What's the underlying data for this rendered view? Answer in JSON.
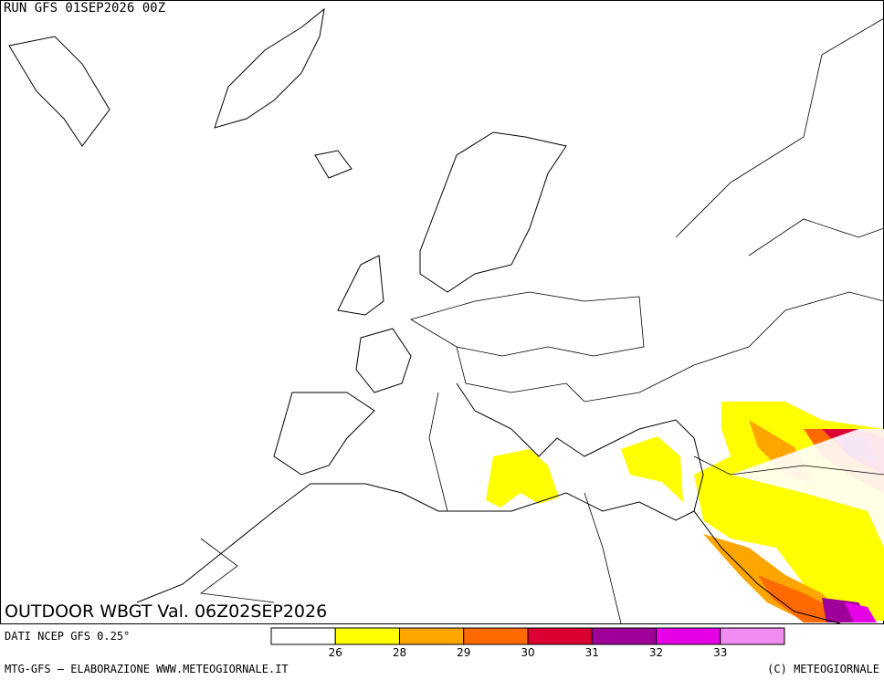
{
  "header": {
    "run": "RUN GFS 01SEP2026 00Z"
  },
  "map": {
    "title": "OUTDOOR WBGT Val. 06Z02SEP2026"
  },
  "legend": {
    "colors": [
      "#ffffff",
      "#ffff00",
      "#ffa500",
      "#ff6a00",
      "#dc0032",
      "#a0009a",
      "#e600e6",
      "#f08cf0"
    ],
    "ticks": [
      26,
      28,
      29,
      30,
      31,
      32,
      33
    ]
  },
  "footer": {
    "source": "DATI NCEP GFS 0.25°",
    "credit": "MTG-GFS — ELABORAZIONE WWW.METEOGIORNALE.IT",
    "copyright": "(C) METEOGIORNALE"
  }
}
